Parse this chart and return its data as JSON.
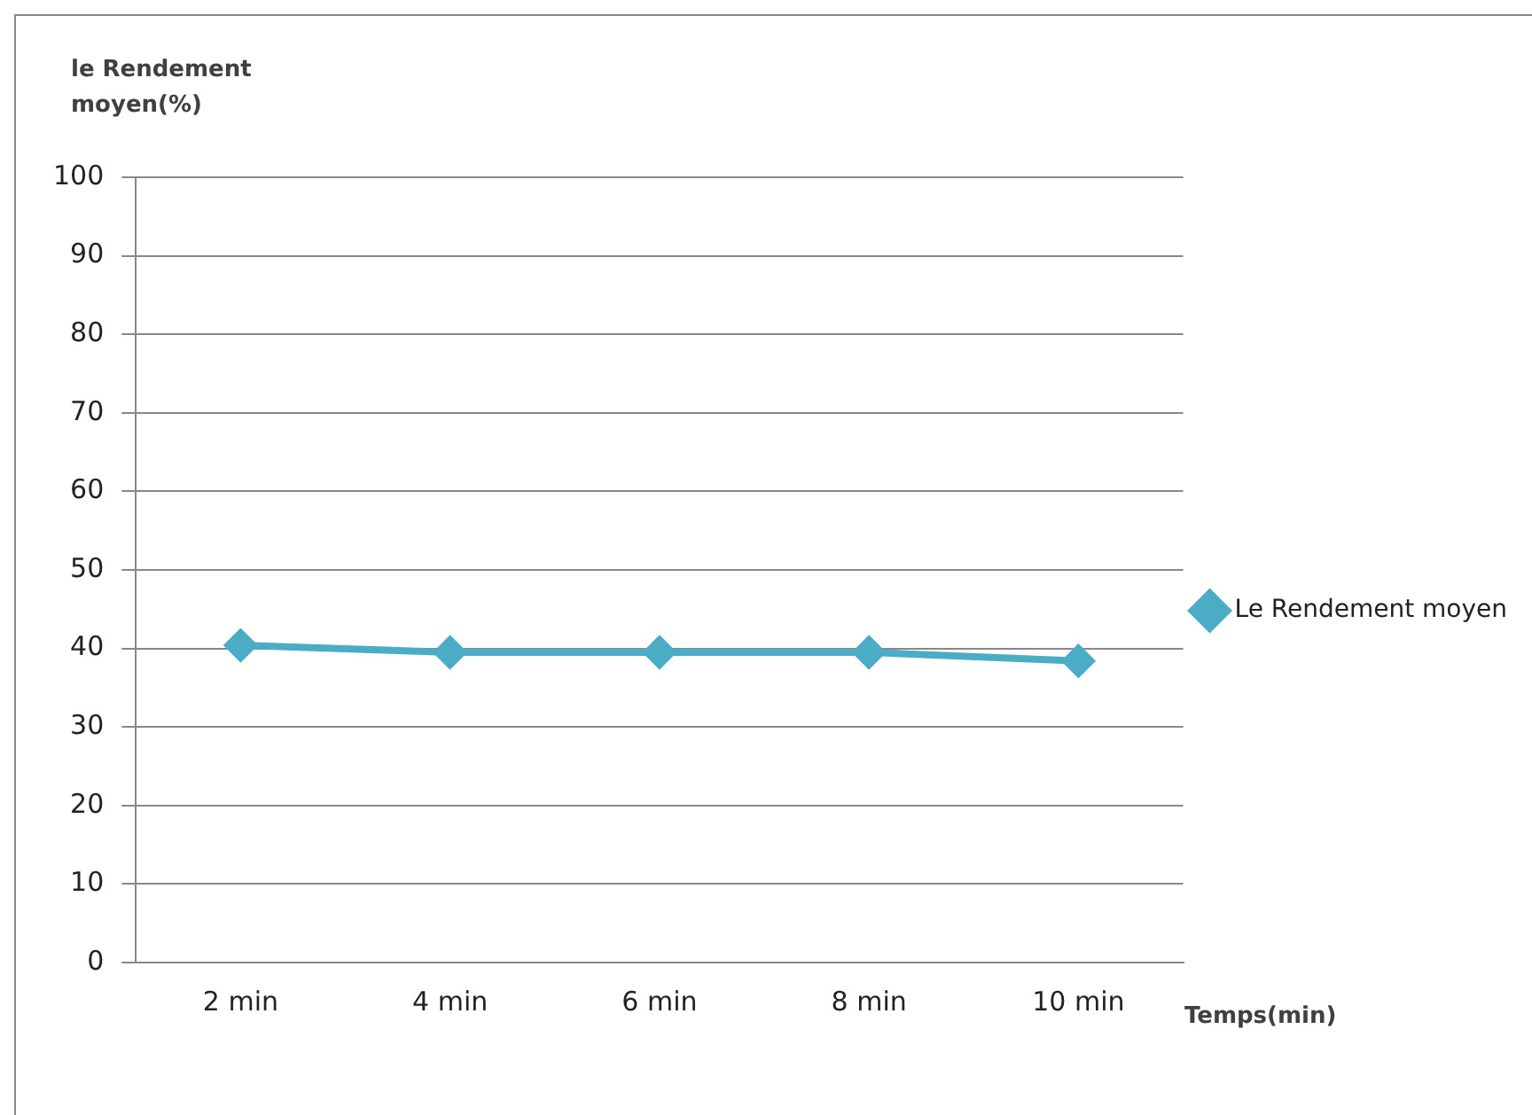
{
  "chart_data": {
    "type": "line",
    "ylabel": "le Rendement\nmoyen(%)",
    "xlabel": "Temps(min)",
    "categories": [
      "2 min",
      "4 min",
      "6 min",
      "8 min",
      "10 min"
    ],
    "series": [
      {
        "name": "Le Rendement moyen",
        "color": "#4bacc6",
        "values": [
          40.4,
          39.5,
          39.5,
          39.5,
          38.4
        ]
      }
    ],
    "ylim": [
      0,
      100
    ],
    "yticks": [
      0,
      10,
      20,
      30,
      40,
      50,
      60,
      70,
      80,
      90,
      100
    ],
    "grid": "y",
    "legend": "right",
    "marker": "diamond",
    "line_style": "solid"
  }
}
